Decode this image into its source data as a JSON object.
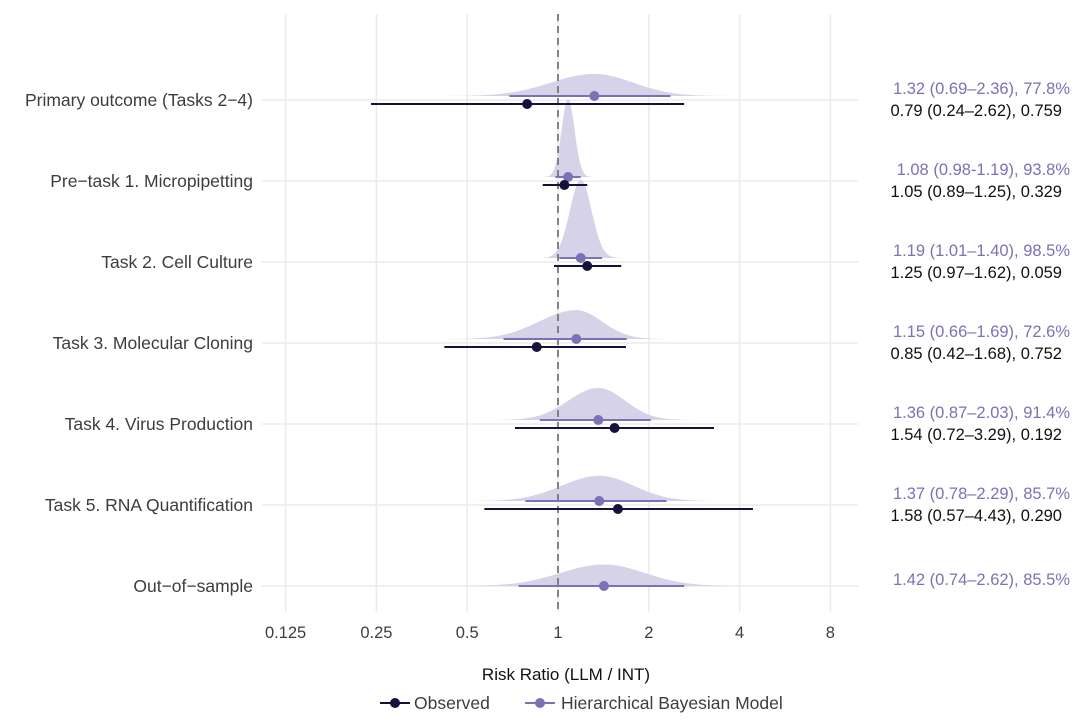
{
  "chart_data": {
    "type": "forest",
    "xlabel": "Risk Ratio (LLM / INT)",
    "x_scale": "log2",
    "xlim": [
      0.1,
      11
    ],
    "xticks": [
      0.125,
      0.25,
      0.5,
      1,
      2,
      4,
      8
    ],
    "xtick_labels": [
      "0.125",
      "0.25",
      "0.5",
      "1",
      "2",
      "4",
      "8"
    ],
    "reference_line": 1,
    "grid": true,
    "legend_position": "bottom",
    "series": [
      {
        "name": "Observed",
        "color": "#14123b"
      },
      {
        "name": "Hierarchical Bayesian Model",
        "color": "#7b72b5"
      }
    ],
    "rows": [
      {
        "label": "Primary outcome (Tasks 2−4)",
        "bayes": {
          "est": 1.32,
          "lo": 0.69,
          "hi": 2.36,
          "text": "1.32 (0.69–2.36), 77.8%"
        },
        "observed": {
          "est": 0.79,
          "lo": 0.24,
          "hi": 2.62,
          "text": "0.79 (0.24–2.62), 0.759"
        }
      },
      {
        "label": "Pre−task 1. Micropipetting",
        "bayes": {
          "est": 1.08,
          "lo": 0.98,
          "hi": 1.19,
          "text": "1.08 (0.98-1.19), 93.8%"
        },
        "observed": {
          "est": 1.05,
          "lo": 0.89,
          "hi": 1.25,
          "text": "1.05 (0.89–1.25), 0.329"
        }
      },
      {
        "label": "Task 2. Cell Culture",
        "bayes": {
          "est": 1.19,
          "lo": 1.01,
          "hi": 1.4,
          "text": "1.19 (1.01–1.40), 98.5%"
        },
        "observed": {
          "est": 1.25,
          "lo": 0.97,
          "hi": 1.62,
          "text": "1.25 (0.97–1.62), 0.059"
        }
      },
      {
        "label": "Task 3. Molecular Cloning",
        "bayes": {
          "est": 1.15,
          "lo": 0.66,
          "hi": 1.69,
          "text": "1.15 (0.66–1.69), 72.6%"
        },
        "observed": {
          "est": 0.85,
          "lo": 0.42,
          "hi": 1.68,
          "text": "0.85 (0.42–1.68), 0.752"
        }
      },
      {
        "label": "Task 4. Virus Production",
        "bayes": {
          "est": 1.36,
          "lo": 0.87,
          "hi": 2.03,
          "text": "1.36 (0.87–2.03), 91.4%"
        },
        "observed": {
          "est": 1.54,
          "lo": 0.72,
          "hi": 3.29,
          "text": "1.54 (0.72–3.29), 0.192"
        }
      },
      {
        "label": "Task 5. RNA Quantification",
        "bayes": {
          "est": 1.37,
          "lo": 0.78,
          "hi": 2.29,
          "text": "1.37 (0.78–2.29), 85.7%"
        },
        "observed": {
          "est": 1.58,
          "lo": 0.57,
          "hi": 4.43,
          "text": "1.58 (0.57–4.43), 0.290"
        }
      },
      {
        "label": "Out−of−sample",
        "bayes": {
          "est": 1.42,
          "lo": 0.74,
          "hi": 2.62,
          "text": "1.42 (0.74–2.62), 85.5%"
        },
        "observed": null
      }
    ]
  }
}
